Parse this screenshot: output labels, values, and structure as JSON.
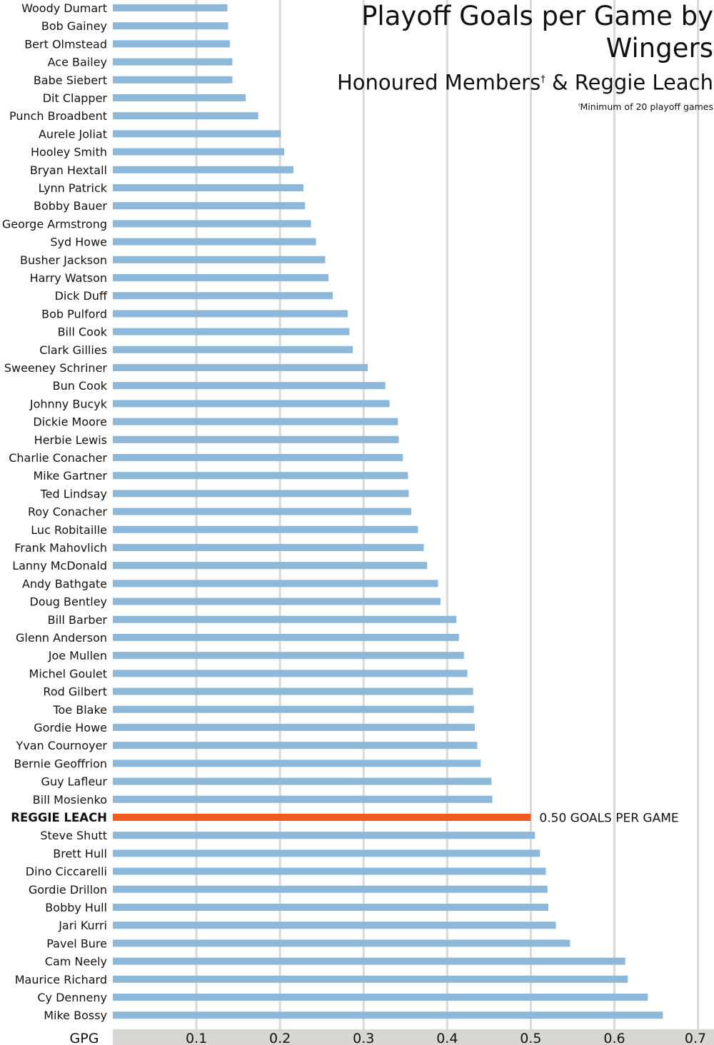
{
  "title": {
    "main": "Playoff Goals per Game by Wingers",
    "subtitle_prefix": "Honoured Members",
    "dagger": "†",
    "subtitle_suffix": " & Reggie Leach",
    "footnote": "Minimum of 20 playoff games"
  },
  "colors": {
    "bar": "#8db8da",
    "highlight": "#f05a1a",
    "grid": "#d9d9d9",
    "axis_band": "#d7d6d2",
    "text": "#111111"
  },
  "chart_data": {
    "type": "bar",
    "orientation": "horizontal",
    "categories": [
      "Woody Dumart",
      "Bob Gainey",
      "Bert Olmstead",
      "Ace Bailey",
      "Babe Siebert",
      "Dit Clapper",
      "Punch Broadbent",
      "Aurele Joliat",
      "Hooley Smith",
      "Bryan Hextall",
      "Lynn Patrick",
      "Bobby Bauer",
      "George Armstrong",
      "Syd Howe",
      "Busher Jackson",
      "Harry Watson",
      "Dick Duff",
      "Bob Pulford",
      "Bill Cook",
      "Clark Gillies",
      "Sweeney Schriner",
      "Bun Cook",
      "Johnny Bucyk",
      "Dickie Moore",
      "Herbie Lewis",
      "Charlie Conacher",
      "Mike Gartner",
      "Ted Lindsay",
      "Roy Conacher",
      "Luc Robitaille",
      "Frank Mahovlich",
      "Lanny McDonald",
      "Andy Bathgate",
      "Doug Bentley",
      "Bill Barber",
      "Glenn Anderson",
      "Joe Mullen",
      "Michel Goulet",
      "Rod Gilbert",
      "Toe Blake",
      "Gordie Howe",
      "Yvan Cournoyer",
      "Bernie Geoffrion",
      "Guy Lafleur",
      "Bill Mosienko",
      "REGGIE LEACH",
      "Steve Shutt",
      "Brett Hull",
      "Dino Ciccarelli",
      "Gordie Drillon",
      "Bobby Hull",
      "Jari Kurri",
      "Pavel Bure",
      "Cam Neely",
      "Maurice Richard",
      "Cy Denneny",
      "Mike Bossy"
    ],
    "values": [
      0.137,
      0.138,
      0.14,
      0.143,
      0.143,
      0.159,
      0.174,
      0.201,
      0.205,
      0.216,
      0.228,
      0.23,
      0.237,
      0.243,
      0.254,
      0.258,
      0.263,
      0.281,
      0.283,
      0.287,
      0.305,
      0.326,
      0.331,
      0.341,
      0.342,
      0.347,
      0.353,
      0.354,
      0.357,
      0.365,
      0.372,
      0.376,
      0.389,
      0.392,
      0.411,
      0.414,
      0.42,
      0.424,
      0.431,
      0.432,
      0.433,
      0.436,
      0.44,
      0.453,
      0.454,
      0.5,
      0.505,
      0.511,
      0.518,
      0.52,
      0.521,
      0.53,
      0.547,
      0.613,
      0.616,
      0.64,
      0.658
    ],
    "highlight_index": 45,
    "highlight_label": "0.50 GOALS PER GAME",
    "xlabel": "GPG",
    "xticks": [
      "0.1",
      "0.2",
      "0.3",
      "0.4",
      "0.5",
      "0.6",
      "0.7"
    ],
    "xtick_values": [
      0.1,
      0.2,
      0.3,
      0.4,
      0.5,
      0.6,
      0.7
    ],
    "xlim": [
      0,
      0.72
    ],
    "grid": true
  }
}
